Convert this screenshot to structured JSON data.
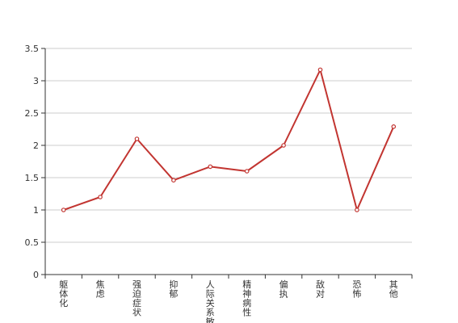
{
  "chart_data": {
    "type": "line",
    "title": "",
    "xlabel": "",
    "ylabel": "",
    "categories": [
      "躯体化",
      "焦虑",
      "强迫症状",
      "抑郁",
      "人际关系敏感",
      "精神病性",
      "偏执",
      "敌对",
      "恐怖",
      "其他"
    ],
    "series": [
      {
        "values": [
          1.0,
          1.2,
          2.1,
          1.46,
          1.67,
          1.6,
          2.0,
          3.17,
          1.0,
          2.29
        ]
      }
    ],
    "ylim": [
      0,
      3.5
    ],
    "yticks": [
      "0",
      "0.5",
      "1",
      "1.5",
      "2",
      "2.5",
      "3",
      "3.5"
    ],
    "grid": true,
    "legend": "none",
    "colors": {
      "line": "#c23531",
      "grid": "#cccccc",
      "axis": "#333333"
    }
  }
}
